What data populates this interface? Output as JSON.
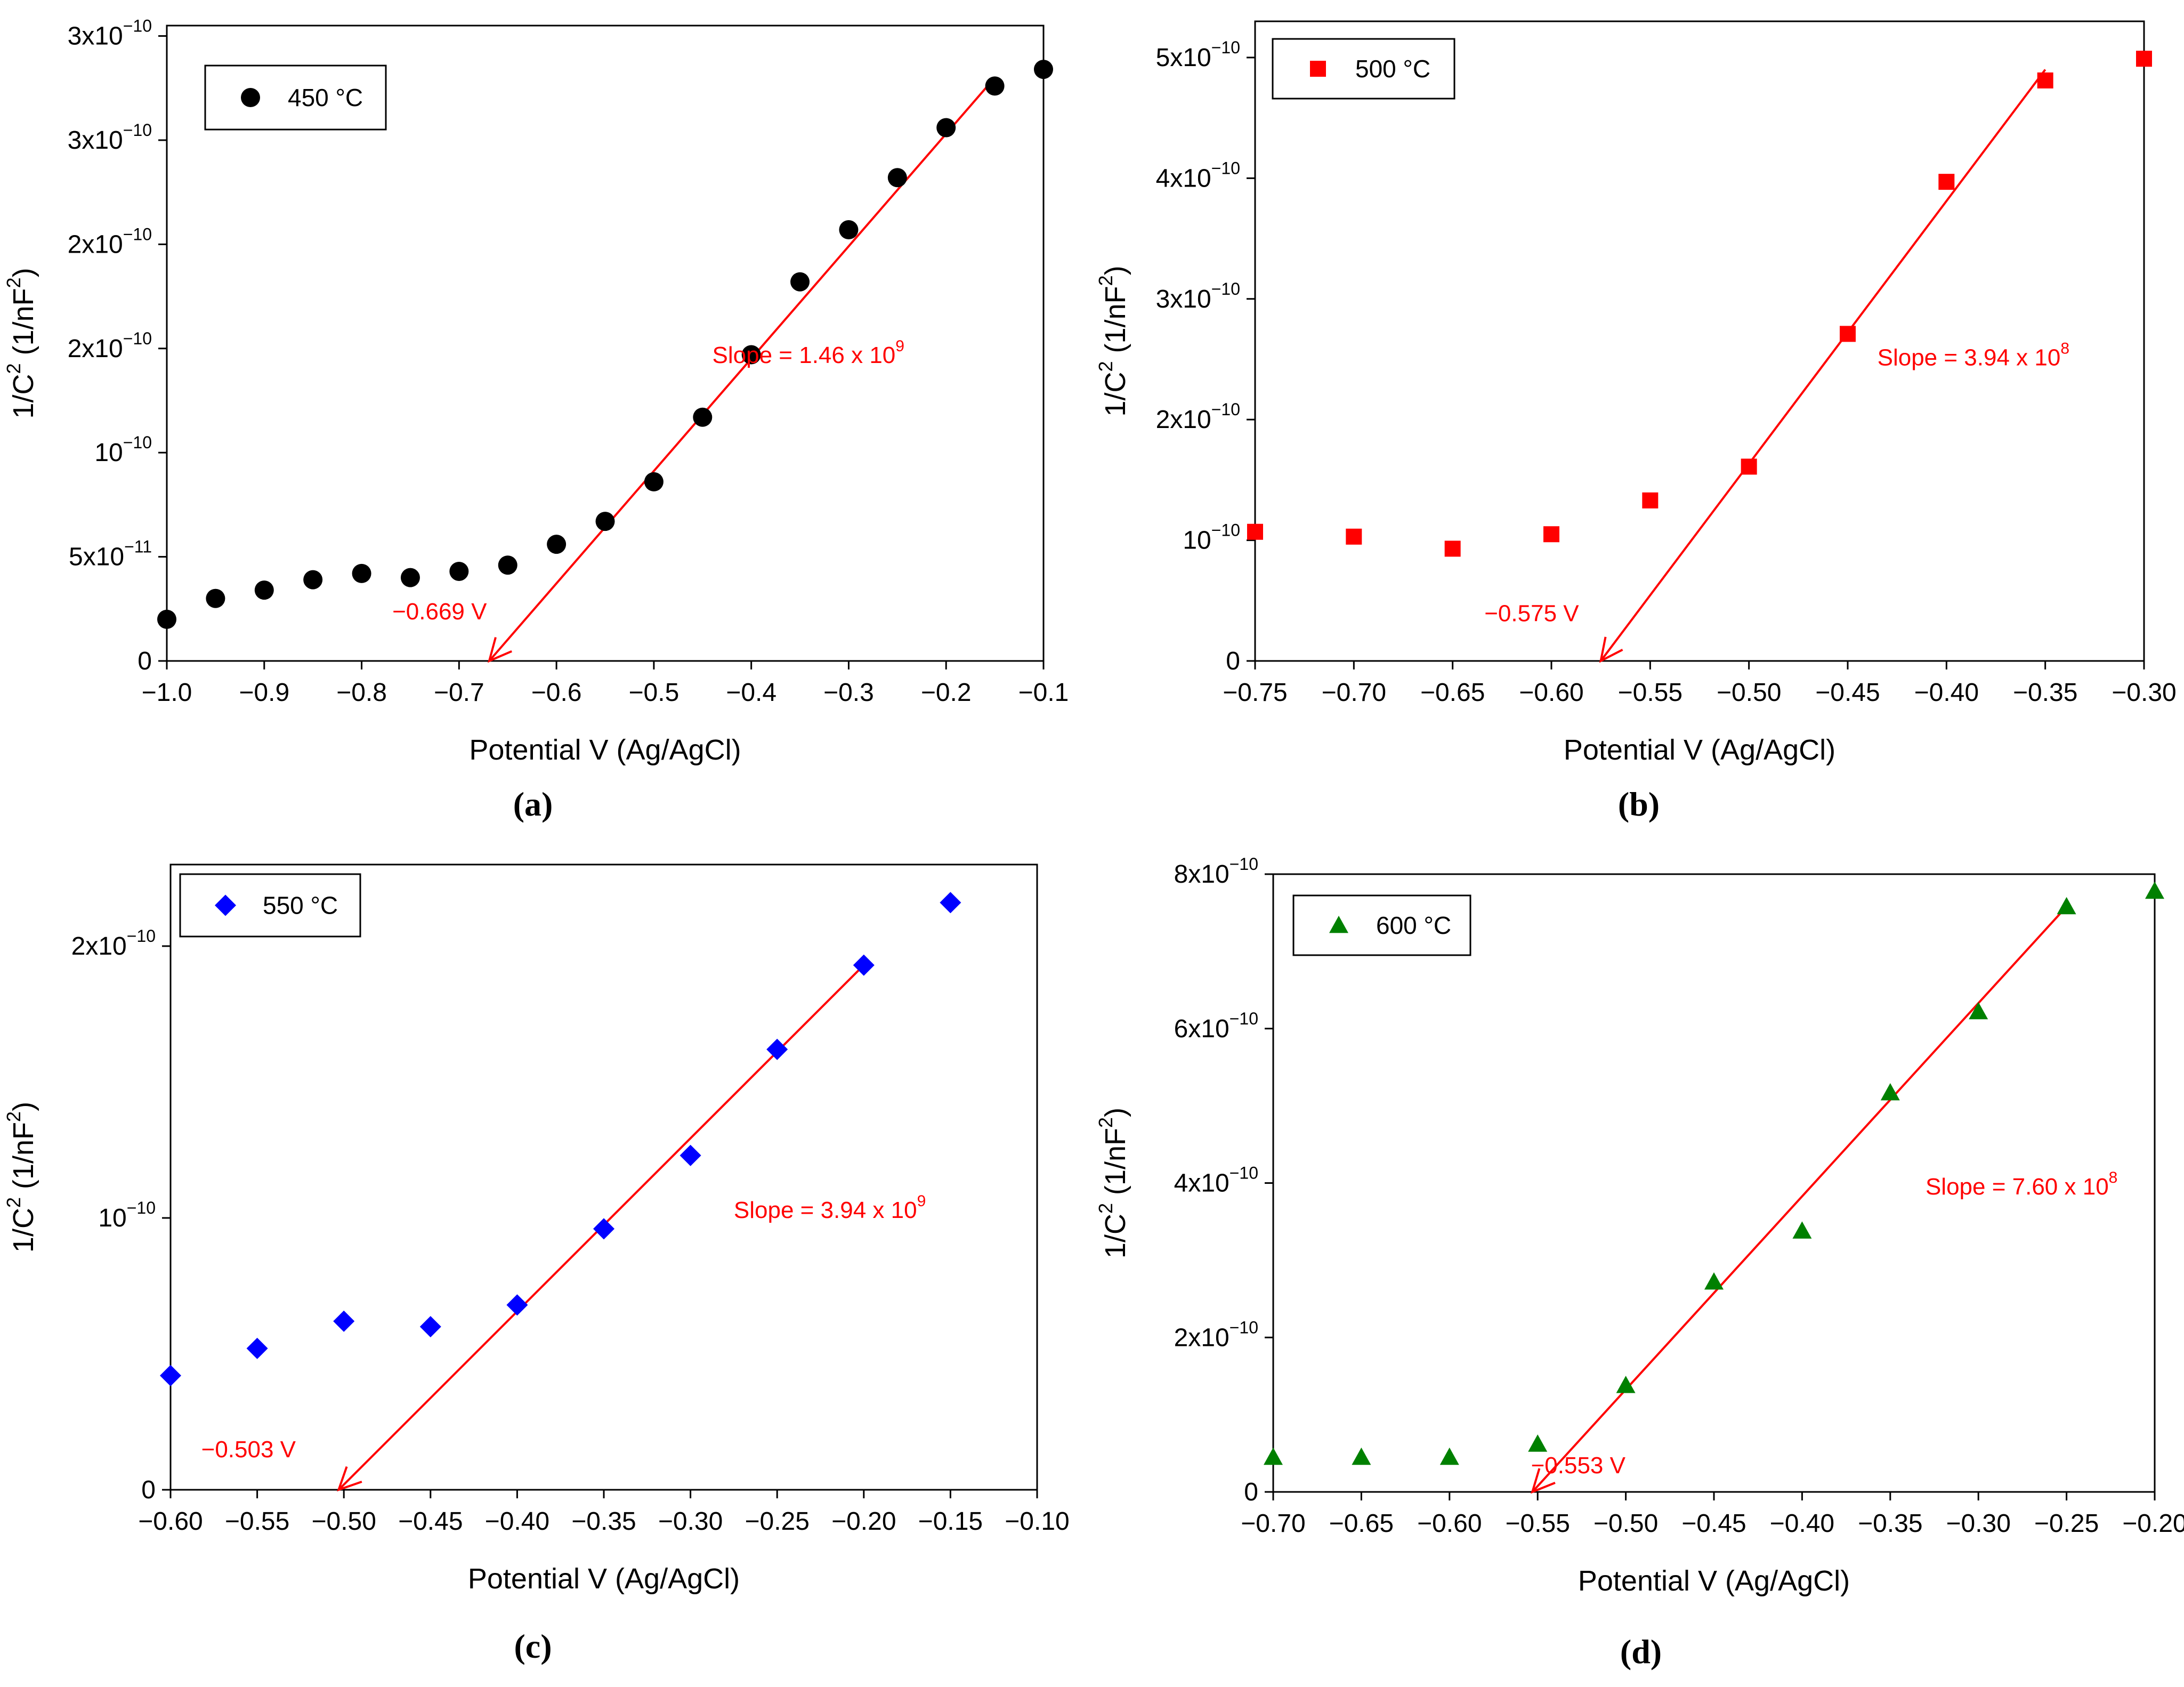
{
  "chart_data": [
    {
      "type": "scatter",
      "panel_label": "a",
      "marker": "circle",
      "color": "#000000",
      "fit_color": "#ff0000",
      "legend": "450 °C",
      "xlabel": "Potential V (Ag/AgCl)",
      "ylabel_base": "1/C",
      "ylabel_sup": "2",
      "ylabel_unit": " (1/nF",
      "ylabel_unit_sup": "2",
      "ylabel_close": ")",
      "xlim": [
        -1.0,
        -0.1
      ],
      "ylim": [
        0,
        3.05e-10
      ],
      "xticks": [
        -1.0,
        -0.9,
        -0.8,
        -0.7,
        -0.6,
        -0.5,
        -0.4,
        -0.3,
        -0.2,
        -0.1
      ],
      "xticklabels": [
        "−1.0",
        "−0.9",
        "−0.8",
        "−0.7",
        "−0.6",
        "−0.5",
        "−0.4",
        "−0.3",
        "−0.2",
        "−0.1"
      ],
      "yticks": [
        0,
        5e-11,
        1e-10,
        1.5e-10,
        2e-10,
        2.5e-10,
        3e-10
      ],
      "yticklabels": [
        {
          "base": "0",
          "exp": ""
        },
        {
          "base": "5x10",
          "exp": "−11"
        },
        {
          "base": "10",
          "exp": "−10"
        },
        {
          "base": "2x10",
          "exp": "−10"
        },
        {
          "base": "2x10",
          "exp": "−10"
        },
        {
          "base": "3x10",
          "exp": "−10"
        },
        {
          "base": "3x10",
          "exp": "−10"
        }
      ],
      "x": [
        -1.0,
        -0.95,
        -0.9,
        -0.85,
        -0.8,
        -0.75,
        -0.7,
        -0.65,
        -0.6,
        -0.55,
        -0.5,
        -0.45,
        -0.4,
        -0.35,
        -0.3,
        -0.25,
        -0.2,
        -0.15,
        -0.1
      ],
      "y": [
        2e-11,
        3e-11,
        3.4e-11,
        3.9e-11,
        4.2e-11,
        4e-11,
        4.3e-11,
        4.6e-11,
        5.6e-11,
        6.7e-11,
        8.6e-11,
        1.17e-10,
        1.47e-10,
        1.82e-10,
        2.07e-10,
        2.32e-10,
        2.56e-10,
        2.76e-10,
        2.84e-10
      ],
      "fit_line": {
        "x": [
          -0.669,
          -0.15
        ],
        "y": [
          0,
          2.8e-10
        ]
      },
      "slope_text": "Slope = 1.46 x 10",
      "slope_exp": "9",
      "slope_pos": {
        "x": -0.44,
        "y": 1.43e-10
      },
      "intercept_text": "−0.669 V",
      "intercept_pos": {
        "x": -0.72,
        "y": 2e-11
      },
      "caption": "(a)"
    },
    {
      "type": "scatter",
      "panel_label": "b",
      "marker": "square",
      "color": "#ff0000",
      "fit_color": "#ff0000",
      "legend": "500 °C",
      "xlabel": "Potential V (Ag/AgCl)",
      "ylabel_base": "1/C",
      "ylabel_sup": "2",
      "ylabel_unit": " (1/nF",
      "ylabel_unit_sup": "2",
      "ylabel_close": ")",
      "xlim": [
        -0.75,
        -0.3
      ],
      "ylim": [
        0,
        5.3e-10
      ],
      "xticks": [
        -0.75,
        -0.7,
        -0.65,
        -0.6,
        -0.55,
        -0.5,
        -0.45,
        -0.4,
        -0.35,
        -0.3
      ],
      "xticklabels": [
        "−0.75",
        "−0.70",
        "−0.65",
        "−0.60",
        "−0.55",
        "−0.50",
        "−0.45",
        "−0.40",
        "−0.35",
        "−0.30"
      ],
      "yticks": [
        0,
        1e-10,
        2e-10,
        3e-10,
        4e-10,
        5e-10
      ],
      "yticklabels": [
        {
          "base": "0",
          "exp": ""
        },
        {
          "base": "10",
          "exp": "−10"
        },
        {
          "base": "2x10",
          "exp": "−10"
        },
        {
          "base": "3x10",
          "exp": "−10"
        },
        {
          "base": "4x10",
          "exp": "−10"
        },
        {
          "base": "5x10",
          "exp": "−10"
        }
      ],
      "x": [
        -0.75,
        -0.7,
        -0.65,
        -0.6,
        -0.55,
        -0.5,
        -0.45,
        -0.4,
        -0.35,
        -0.3
      ],
      "y": [
        1.07e-10,
        1.03e-10,
        9.3e-11,
        1.05e-10,
        1.33e-10,
        1.61e-10,
        2.71e-10,
        3.97e-10,
        4.81e-10,
        4.99e-10
      ],
      "fit_line": {
        "x": [
          -0.575,
          -0.35
        ],
        "y": [
          0,
          4.9e-10
        ]
      },
      "slope_text": "Slope = 3.94 x 10",
      "slope_exp": "8",
      "slope_pos": {
        "x": -0.435,
        "y": 2.45e-10
      },
      "intercept_text": "−0.575 V",
      "intercept_pos": {
        "x": -0.61,
        "y": 3.3e-11
      },
      "caption": "(b)"
    },
    {
      "type": "scatter",
      "panel_label": "c",
      "marker": "diamond",
      "color": "#0000ff",
      "fit_color": "#ff0000",
      "legend": "550 °C",
      "xlabel": "Potential V (Ag/AgCl)",
      "ylabel_base": "1/C",
      "ylabel_sup": "2",
      "ylabel_unit": " (1/nF",
      "ylabel_unit_sup": "2",
      "ylabel_close": ")",
      "xlim": [
        -0.6,
        -0.1
      ],
      "ylim": [
        0,
        2.3e-10
      ],
      "xticks": [
        -0.6,
        -0.55,
        -0.5,
        -0.45,
        -0.4,
        -0.35,
        -0.3,
        -0.25,
        -0.2,
        -0.15,
        -0.1
      ],
      "xticklabels": [
        "−0.60",
        "−0.55",
        "−0.50",
        "−0.45",
        "−0.40",
        "−0.35",
        "−0.30",
        "−0.25",
        "−0.20",
        "−0.15",
        "−0.10"
      ],
      "yticks": [
        0,
        1e-10,
        2e-10
      ],
      "yticklabels": [
        {
          "base": "0",
          "exp": ""
        },
        {
          "base": "10",
          "exp": "−10"
        },
        {
          "base": "2x10",
          "exp": "−10"
        }
      ],
      "x": [
        -0.6,
        -0.55,
        -0.5,
        -0.45,
        -0.4,
        -0.35,
        -0.3,
        -0.25,
        -0.2,
        -0.15
      ],
      "y": [
        4.2e-11,
        5.2e-11,
        6.2e-11,
        6e-11,
        6.8e-11,
        9.6e-11,
        1.23e-10,
        1.62e-10,
        1.93e-10,
        2.16e-10
      ],
      "fit_line": {
        "x": [
          -0.503,
          -0.2
        ],
        "y": [
          0,
          1.93e-10
        ]
      },
      "slope_text": "Slope = 3.94 x 10",
      "slope_exp": "9",
      "slope_pos": {
        "x": -0.275,
        "y": 1e-10
      },
      "intercept_text": "−0.503 V",
      "intercept_pos": {
        "x": -0.555,
        "y": 1.2e-11
      },
      "caption": "(c)"
    },
    {
      "type": "scatter",
      "panel_label": "d",
      "marker": "triangle",
      "color": "#008000",
      "fit_color": "#ff0000",
      "legend": "600 °C",
      "xlabel": "Potential V (Ag/AgCl)",
      "ylabel_base": "1/C",
      "ylabel_sup": "2",
      "ylabel_unit": " (1/nF",
      "ylabel_unit_sup": "2",
      "ylabel_close": ")",
      "xlim": [
        -0.7,
        -0.2
      ],
      "ylim": [
        0,
        8e-10
      ],
      "xticks": [
        -0.7,
        -0.65,
        -0.6,
        -0.55,
        -0.5,
        -0.45,
        -0.4,
        -0.35,
        -0.3,
        -0.25,
        -0.2
      ],
      "xticklabels": [
        "−0.70",
        "−0.65",
        "−0.60",
        "−0.55",
        "−0.50",
        "−0.45",
        "−0.40",
        "−0.35",
        "−0.30",
        "−0.25",
        "−0.20"
      ],
      "yticks": [
        0,
        2e-10,
        4e-10,
        6e-10,
        8e-10
      ],
      "yticklabels": [
        {
          "base": "0",
          "exp": ""
        },
        {
          "base": "2x10",
          "exp": "−10"
        },
        {
          "base": "4x10",
          "exp": "−10"
        },
        {
          "base": "6x10",
          "exp": "−10"
        },
        {
          "base": "8x10",
          "exp": "−10"
        }
      ],
      "x": [
        -0.7,
        -0.65,
        -0.6,
        -0.55,
        -0.5,
        -0.45,
        -0.4,
        -0.35,
        -0.3,
        -0.25,
        -0.2
      ],
      "y": [
        4.5e-11,
        4.5e-11,
        4.5e-11,
        6.2e-11,
        1.38e-10,
        2.72e-10,
        3.38e-10,
        5.17e-10,
        6.22e-10,
        7.58e-10,
        7.78e-10
      ],
      "fit_line": {
        "x": [
          -0.553,
          -0.25
        ],
        "y": [
          0,
          7.58e-10
        ]
      },
      "slope_text": "Slope = 7.60 x 10",
      "slope_exp": "8",
      "slope_pos": {
        "x": -0.33,
        "y": 3.85e-10
      },
      "intercept_text": "−0.553 V",
      "intercept_pos": {
        "x": -0.527,
        "y": 2.4e-11
      },
      "caption": "(d)"
    }
  ]
}
